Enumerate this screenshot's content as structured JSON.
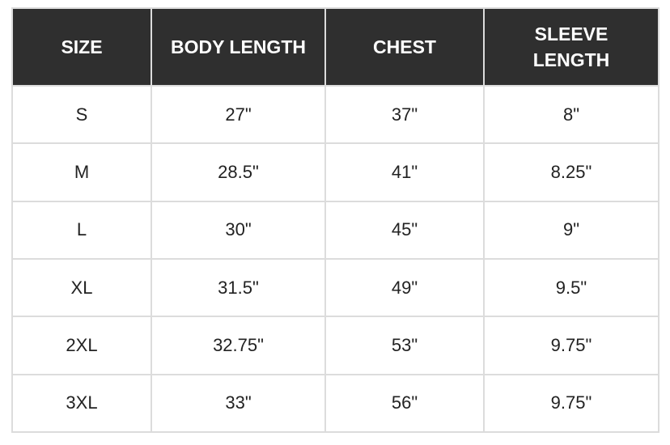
{
  "table": {
    "headers": [
      "SIZE",
      "BODY LENGTH",
      "CHEST",
      "SLEEVE LENGTH"
    ],
    "rows": [
      [
        "S",
        "27\"",
        "37\"",
        "8\""
      ],
      [
        "M",
        "28.5\"",
        "41\"",
        "8.25\""
      ],
      [
        "L",
        "30\"",
        "45\"",
        "9\""
      ],
      [
        "XL",
        "31.5\"",
        "49\"",
        "9.5\""
      ],
      [
        "2XL",
        "32.75\"",
        "53\"",
        "9.75\""
      ],
      [
        "3XL",
        "33\"",
        "56\"",
        "9.75\""
      ]
    ]
  },
  "colors": {
    "header_bg": "#2f2f2f",
    "header_text": "#ffffff",
    "border": "#dcdcdc"
  }
}
